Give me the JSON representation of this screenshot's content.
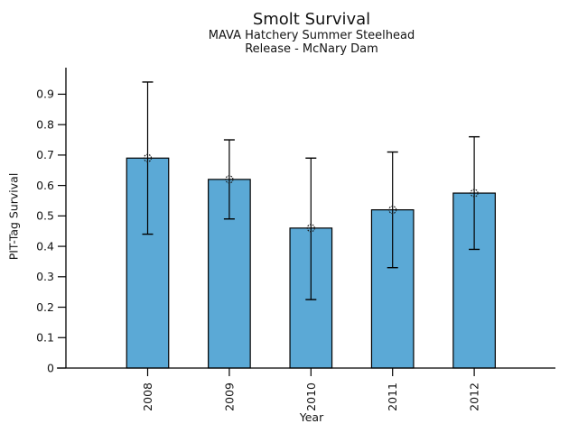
{
  "chart_data": {
    "type": "bar",
    "title": "Smolt Survival",
    "subtitle_line1": "MAVA Hatchery Summer Steelhead",
    "subtitle_line2": "Release - McNary Dam",
    "xlabel": "Year",
    "ylabel": "PIT-Tag Survival",
    "categories": [
      "2008",
      "2009",
      "2010",
      "2011",
      "2012"
    ],
    "values": [
      0.69,
      0.62,
      0.46,
      0.52,
      0.575
    ],
    "error_low": [
      0.44,
      0.49,
      0.225,
      0.33,
      0.39
    ],
    "error_high": [
      0.94,
      0.75,
      0.69,
      0.71,
      0.76
    ],
    "ylim": [
      0,
      0.99
    ],
    "yticks": [
      0,
      0.1,
      0.2,
      0.3,
      0.4,
      0.5,
      0.6,
      0.7,
      0.8,
      0.9
    ],
    "ytick_labels": [
      "0",
      "0.1",
      "0.2",
      "0.3",
      "0.4",
      "0.5",
      "0.6",
      "0.7",
      "0.8",
      "0.9"
    ],
    "x_tick_label_rotation": 90,
    "grid": false,
    "legend": null,
    "marker": "open-circle",
    "colors": {
      "bar_fill": "#5BA9D6",
      "bar_edge": "#000000",
      "error_bar": "#000000",
      "marker_edge": "#1a1a1a",
      "axis": "#000000",
      "text": "#141414"
    }
  }
}
